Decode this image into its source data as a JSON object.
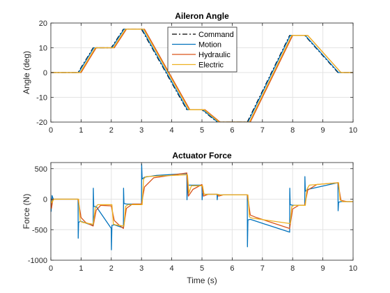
{
  "chart_data": [
    {
      "type": "line",
      "title": "Aileron Angle",
      "xlabel": "",
      "ylabel": "Angle (deg)",
      "xlim": [
        0,
        10
      ],
      "ylim": [
        -20,
        20
      ],
      "xticks": [
        "0",
        "1",
        "2",
        "3",
        "4",
        "5",
        "6",
        "7",
        "8",
        "9",
        "10"
      ],
      "yticks": [
        "-20",
        "-10",
        "0",
        "10",
        "20"
      ],
      "grid": true,
      "legend": "top-center",
      "series": [
        {
          "name": "Command",
          "color": "#000000",
          "style": "dash-dot",
          "x": [
            0,
            0.9,
            1.4,
            2.0,
            2.4,
            3.0,
            4.5,
            5.0,
            5.5,
            6.5,
            7.9,
            8.4,
            9.5,
            10
          ],
          "y": [
            0,
            0,
            10,
            10,
            17.5,
            17.5,
            -15,
            -15,
            -20,
            -20,
            15,
            15,
            0,
            0
          ]
        },
        {
          "name": "Motion",
          "color": "#0072BD",
          "style": "solid",
          "x": [
            0,
            0.92,
            1.42,
            2.02,
            2.42,
            3.02,
            4.52,
            5.02,
            5.52,
            6.52,
            7.92,
            8.42,
            9.52,
            10
          ],
          "y": [
            0,
            0,
            10,
            10,
            17.5,
            17.5,
            -15,
            -15,
            -20,
            -20,
            15,
            15,
            0,
            0
          ]
        },
        {
          "name": "Hydraulic",
          "color": "#D95319",
          "style": "solid",
          "x": [
            0,
            1.0,
            1.5,
            2.1,
            2.5,
            3.1,
            4.6,
            5.1,
            5.6,
            6.6,
            8.0,
            8.5,
            9.6,
            10
          ],
          "y": [
            0,
            0,
            10,
            10,
            17.5,
            17.5,
            -15,
            -15,
            -20,
            -20,
            15,
            15,
            0,
            0
          ]
        },
        {
          "name": "Electric",
          "color": "#EDB120",
          "style": "solid",
          "x": [
            0,
            0.97,
            1.47,
            2.07,
            2.47,
            3.07,
            4.57,
            5.07,
            5.57,
            6.57,
            7.97,
            8.5,
            9.6,
            10
          ],
          "y": [
            0,
            0,
            10,
            10,
            17.5,
            17.5,
            -15,
            -15,
            -20,
            -20,
            15,
            15,
            0,
            0
          ]
        }
      ]
    },
    {
      "type": "line",
      "title": "Actuator Force",
      "xlabel": "Time (s)",
      "ylabel": "Force (N)",
      "xlim": [
        0,
        10
      ],
      "ylim": [
        -1000,
        600
      ],
      "xticks": [
        "0",
        "1",
        "2",
        "3",
        "4",
        "5",
        "6",
        "7",
        "8",
        "9",
        "10"
      ],
      "yticks": [
        "-1000",
        "-500",
        "0",
        "500"
      ],
      "grid": true,
      "series": [
        {
          "name": "Motion",
          "color": "#0072BD",
          "style": "solid",
          "x": [
            0,
            0.01,
            0.04,
            0.08,
            0.9,
            0.905,
            0.92,
            0.98,
            1.2,
            1.4,
            1.405,
            1.42,
            1.5,
            2.0,
            2.005,
            2.02,
            2.1,
            2.4,
            2.405,
            2.42,
            2.5,
            3.0,
            3.005,
            3.02,
            3.1,
            3.5,
            4.5,
            4.505,
            4.52,
            4.6,
            5.0,
            5.005,
            5.02,
            5.1,
            5.5,
            5.505,
            5.52,
            5.6,
            6.5,
            6.505,
            6.52,
            6.6,
            7.9,
            7.905,
            7.92,
            8.0,
            8.4,
            8.405,
            8.42,
            8.5,
            9.5,
            9.505,
            9.52,
            9.6,
            10
          ],
          "y": [
            0,
            -200,
            60,
            0,
            0,
            -640,
            -380,
            -360,
            -400,
            -430,
            180,
            -120,
            -120,
            -480,
            -830,
            -430,
            -420,
            -470,
            180,
            -70,
            -80,
            -80,
            570,
            330,
            360,
            390,
            420,
            -10,
            230,
            230,
            230,
            -10,
            90,
            80,
            80,
            -10,
            80,
            70,
            70,
            -780,
            -340,
            -330,
            -540,
            180,
            -90,
            -100,
            -100,
            370,
            130,
            160,
            270,
            -190,
            -50,
            -40,
            -40
          ]
        },
        {
          "name": "Hydraulic",
          "color": "#D95319",
          "style": "solid",
          "x": [
            0,
            0.02,
            0.07,
            0.9,
            1.0,
            1.15,
            1.4,
            1.5,
            1.65,
            2.0,
            2.1,
            2.25,
            2.4,
            2.5,
            2.7,
            3.0,
            3.1,
            3.4,
            4.5,
            4.55,
            4.7,
            5.0,
            5.05,
            5.2,
            5.5,
            5.55,
            5.7,
            6.5,
            6.6,
            6.8,
            7.9,
            8.0,
            8.2,
            8.4,
            8.5,
            8.8,
            9.5,
            9.6,
            9.8,
            10
          ],
          "y": [
            0,
            -150,
            0,
            0,
            -300,
            -380,
            -440,
            -180,
            -100,
            -110,
            -350,
            -420,
            -480,
            -150,
            -80,
            -80,
            200,
            350,
            430,
            50,
            160,
            240,
            50,
            80,
            80,
            50,
            70,
            70,
            -260,
            -300,
            -480,
            -160,
            -100,
            -100,
            150,
            240,
            270,
            -20,
            -40,
            -40
          ]
        },
        {
          "name": "Electric",
          "color": "#EDB120",
          "style": "solid",
          "x": [
            0,
            0.03,
            0.1,
            0.92,
            0.97,
            1.05,
            1.4,
            1.47,
            1.55,
            2.02,
            2.07,
            2.15,
            2.42,
            2.47,
            2.55,
            3.02,
            3.07,
            3.15,
            4.52,
            4.57,
            4.65,
            5.02,
            5.07,
            5.15,
            5.52,
            5.57,
            5.65,
            6.52,
            6.57,
            6.65,
            7.92,
            7.97,
            8.05,
            8.42,
            8.47,
            8.55,
            9.52,
            9.57,
            9.65,
            10
          ],
          "y": [
            0,
            -60,
            0,
            0,
            -360,
            -380,
            -410,
            -140,
            -90,
            -90,
            -410,
            -420,
            -440,
            -120,
            -90,
            -90,
            330,
            370,
            400,
            100,
            220,
            220,
            80,
            80,
            80,
            70,
            70,
            70,
            -290,
            -310,
            -400,
            -120,
            -100,
            -100,
            160,
            230,
            270,
            -10,
            -40,
            -40
          ]
        }
      ]
    }
  ]
}
